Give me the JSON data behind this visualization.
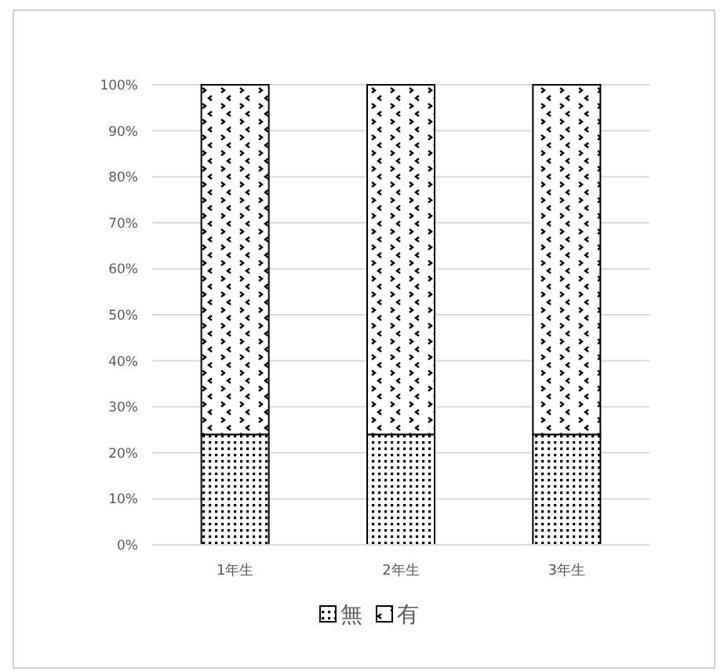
{
  "chart_data": {
    "type": "bar",
    "stacked": true,
    "categories": [
      "1年生",
      "2年生",
      "3年生"
    ],
    "series": [
      {
        "name": "無",
        "color": "#000000",
        "values": [
          24,
          24,
          24
        ]
      },
      {
        "name": "有",
        "color": "#000000",
        "values": [
          76,
          76,
          76
        ]
      }
    ],
    "ylim": [
      0,
      100
    ],
    "yticks": [
      {
        "value": 0,
        "label": "0%"
      },
      {
        "value": 10,
        "label": "10%"
      },
      {
        "value": 20,
        "label": "20%"
      },
      {
        "value": 30,
        "label": "30%"
      },
      {
        "value": 40,
        "label": "40%"
      },
      {
        "value": 50,
        "label": "50%"
      },
      {
        "value": 60,
        "label": "60%"
      },
      {
        "value": 70,
        "label": "70%"
      },
      {
        "value": 80,
        "label": "80%"
      },
      {
        "value": 90,
        "label": "90%"
      },
      {
        "value": 100,
        "label": "100%"
      }
    ],
    "grid": "y",
    "legend": "bottom"
  }
}
